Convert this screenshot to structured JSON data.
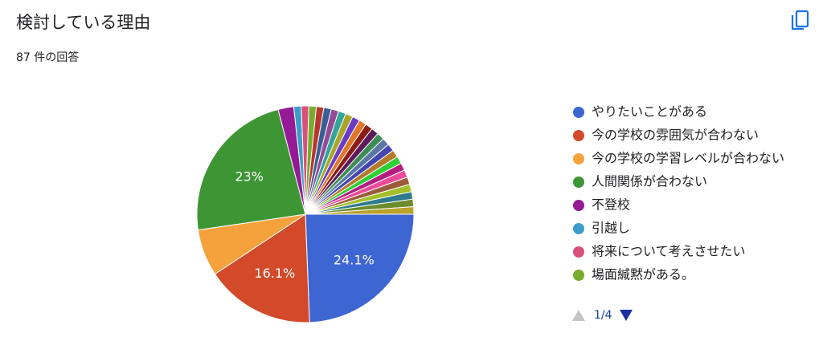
{
  "chart_data": {
    "type": "pie",
    "title": "検討している理由",
    "subtitle": "87 件の回答",
    "categories": [
      "やりたいことがある",
      "今の学校の雰囲気が合わない",
      "今の学校の学習レベルが合わない",
      "人間関係が合わない",
      "不登校",
      "引越し",
      "将来について考えさせたい",
      "場面緘黙がある。",
      null,
      null,
      null,
      null,
      null,
      null,
      null,
      null,
      null,
      null,
      null,
      null,
      null,
      null,
      null,
      null,
      null,
      null,
      null,
      null,
      null
    ],
    "values": [
      24.1,
      16.1,
      6.9,
      23,
      2.3,
      1.1,
      1.1,
      1.1,
      1.1,
      1.1,
      1.1,
      1.1,
      1.1,
      1.1,
      1.1,
      1.1,
      1.1,
      1.1,
      1.1,
      1.1,
      1.1,
      1.1,
      1.1,
      1.1,
      1.1,
      1.1,
      1.1,
      1.1,
      1.1
    ],
    "value_labels": [
      "24.1%",
      "16.1%",
      null,
      "23%",
      null,
      null,
      null,
      null,
      null,
      null,
      null,
      null,
      null,
      null,
      null,
      null,
      null,
      null,
      null,
      null,
      null,
      null,
      null,
      null,
      null,
      null,
      null,
      null,
      null
    ],
    "colors": [
      "#3e66d3",
      "#d24a2a",
      "#f5a13c",
      "#3d9534",
      "#951a95",
      "#3d9dc8",
      "#d9507a",
      "#77ab2e",
      "#b8372f",
      "#3a5f96",
      "#944a97",
      "#35a59a",
      "#a8a528",
      "#6a3cc6",
      "#e27627",
      "#8b1c14",
      "#5d1b5c",
      "#3f8c56",
      "#5a76a6",
      "#4446b0",
      "#b47a2b",
      "#2fcf37",
      "#b51d83",
      "#ee4a9a",
      "#9a5b3a",
      "#a4bf2a",
      "#2f7a8d",
      "#6b8c2a",
      "#b9a22a"
    ],
    "legend_page": "1/4"
  }
}
